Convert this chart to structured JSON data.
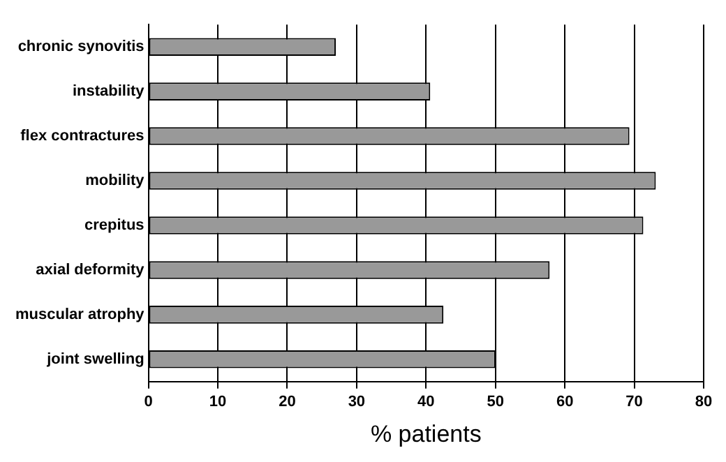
{
  "chart_data": {
    "type": "bar",
    "orientation": "horizontal",
    "xlabel": "% patients",
    "categories": [
      "chronic synovitis",
      "instability",
      "flex contractures",
      "mobility",
      "crepitus",
      "axial deformity",
      "muscular atrophy",
      "joint swelling"
    ],
    "values": [
      27,
      40.6,
      69.3,
      73.1,
      71.3,
      57.8,
      42.5,
      50
    ],
    "color": "#999999",
    "xlim": [
      0,
      80
    ],
    "xticks": [
      0,
      10,
      20,
      30,
      40,
      50,
      60,
      70,
      80
    ],
    "grid": "x",
    "legend": false
  }
}
